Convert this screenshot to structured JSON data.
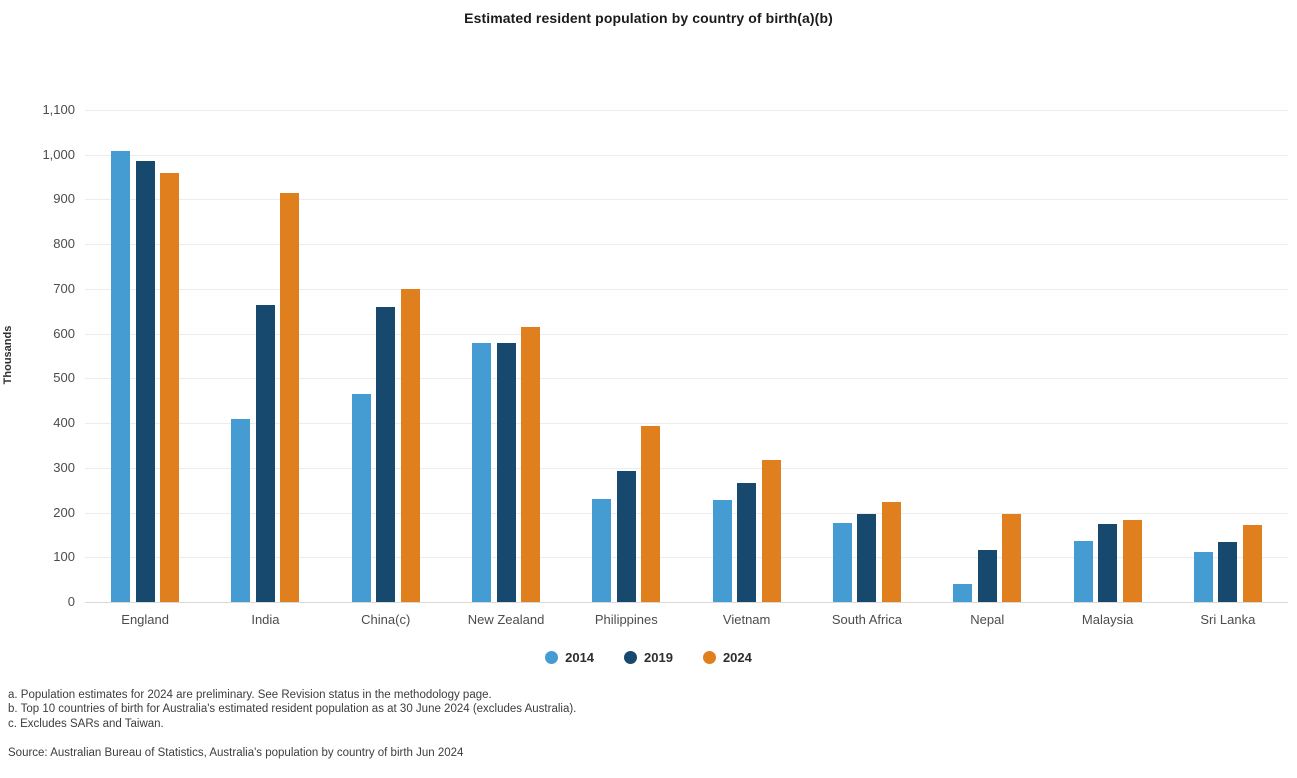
{
  "title": "Estimated resident population by country of birth(a)(b)",
  "chart_data": {
    "type": "bar",
    "categories": [
      "England",
      "India",
      "China(c)",
      "New Zealand",
      "Philippines",
      "Vietnam",
      "South Africa",
      "Nepal",
      "Malaysia",
      "Sri Lanka"
    ],
    "series": [
      {
        "name": "2014",
        "color": "#459CD3",
        "values": [
          1008,
          410,
          464,
          580,
          230,
          229,
          176,
          41,
          137,
          111
        ]
      },
      {
        "name": "2019",
        "color": "#16496D",
        "values": [
          985,
          663,
          659,
          578,
          292,
          265,
          196,
          117,
          175,
          135
        ]
      },
      {
        "name": "2024",
        "color": "#DF7F1E",
        "values": [
          960,
          915,
          700,
          614,
          393,
          318,
          224,
          196,
          183,
          172
        ]
      }
    ],
    "ylabel": "Thousands",
    "ylim": [
      0,
      1100
    ],
    "ytick_step": 100,
    "grid": true,
    "legend_position": "bottom"
  },
  "footnotes": [
    "a. Population estimates for 2024 are preliminary. See Revision status in the methodology page.",
    "b. Top 10 countries of birth for Australia's estimated resident population as at 30 June 2024 (excludes Australia).",
    "c. Excludes SARs and Taiwan."
  ],
  "source": "Source: Australian Bureau of Statistics, Australia's population by country of birth Jun 2024",
  "colors": {
    "background": "#ffffff",
    "gridline": "#ececec",
    "axis_line": "#d9d9d9",
    "title_text": "#1b1b1b",
    "tick_text": "#4c4c4c"
  }
}
